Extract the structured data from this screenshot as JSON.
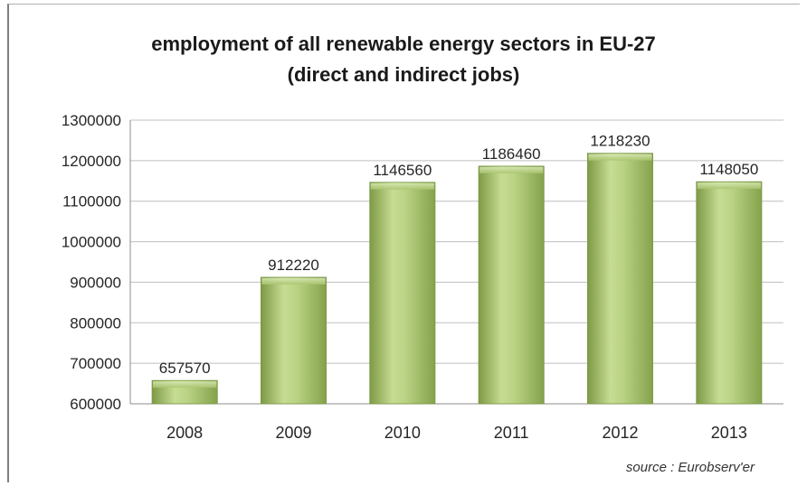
{
  "chart_data": {
    "type": "bar",
    "title_line1": "employment of all renewable energy sectors in EU-27",
    "title_line2": "(direct and indirect jobs)",
    "categories": [
      "2008",
      "2009",
      "2010",
      "2011",
      "2012",
      "2013"
    ],
    "values": [
      657570,
      912220,
      1146560,
      1186460,
      1218230,
      1148050
    ],
    "data_labels": [
      "657570",
      "912220",
      "1146560",
      "1186460",
      "1218230",
      "1148050"
    ],
    "ylim": [
      600000,
      1300000
    ],
    "yticks": [
      "600000",
      "700000",
      "800000",
      "900000",
      "1000000",
      "1100000",
      "1200000",
      "1300000"
    ],
    "grid": true,
    "bar_color": "#9dbb61",
    "source": "source : Eurobserv'er"
  }
}
